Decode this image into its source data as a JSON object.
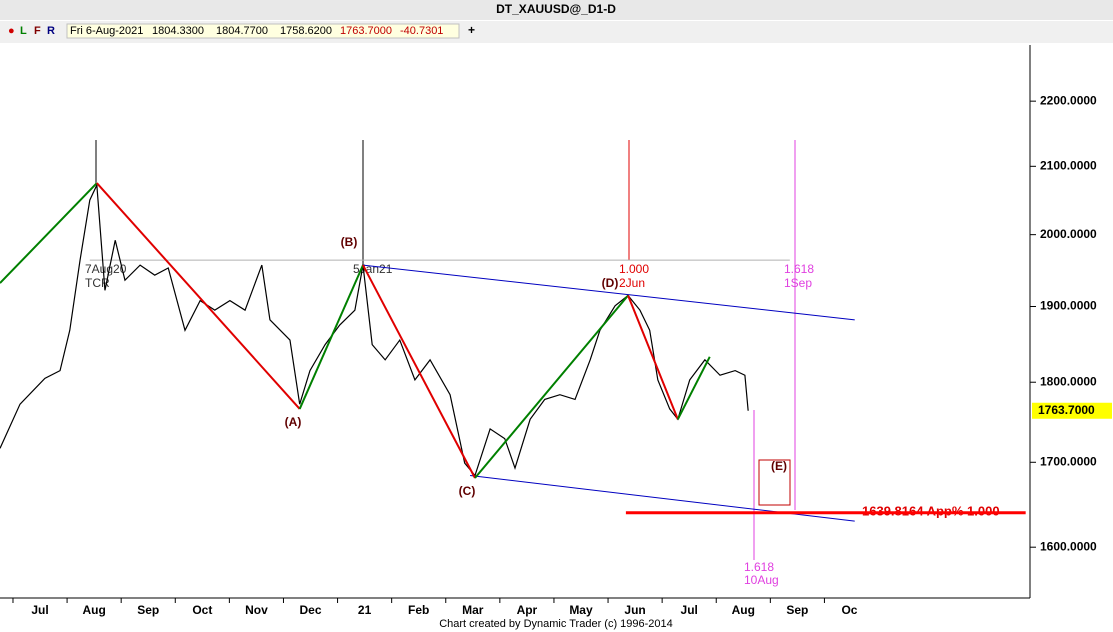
{
  "chart_data": {
    "type": "line",
    "title": "DT_XAUUSD@_D1-D",
    "toolbar": {
      "buttons": [
        "●",
        "L",
        "F",
        "R"
      ],
      "date": "Fri 6-Aug-2021",
      "open": "1804.3300",
      "high": "1804.7700",
      "low": "1758.6200",
      "close": "1763.7000",
      "change": "-40.7301",
      "add": "+"
    },
    "footer": "Chart created by Dynamic Trader  (c)  1996-2014",
    "log_scale": true,
    "xlim": [
      -0.24,
      18.8
    ],
    "xticks": [
      {
        "value": 0,
        "label": "Jul"
      },
      {
        "value": 1,
        "label": "Aug"
      },
      {
        "value": 2,
        "label": "Sep"
      },
      {
        "value": 3,
        "label": "Oct"
      },
      {
        "value": 4,
        "label": "Nov"
      },
      {
        "value": 5,
        "label": "Dec"
      },
      {
        "value": 6,
        "label": "21"
      },
      {
        "value": 7,
        "label": "Feb"
      },
      {
        "value": 8,
        "label": "Mar"
      },
      {
        "value": 9,
        "label": "Apr"
      },
      {
        "value": 10,
        "label": "May"
      },
      {
        "value": 11,
        "label": "Jun"
      },
      {
        "value": 12,
        "label": "Jul"
      },
      {
        "value": 13,
        "label": "Aug"
      },
      {
        "value": 14,
        "label": "Sep"
      },
      {
        "value": 15,
        "label": "Oct"
      }
    ],
    "ylim": [
      1543,
      2290
    ],
    "yticks": [
      {
        "value": 1600,
        "label": "1600.0000"
      },
      {
        "value": 1700,
        "label": "1700.0000"
      },
      {
        "value": 1800,
        "label": "1800.0000"
      },
      {
        "value": 1900,
        "label": "1900.0000"
      },
      {
        "value": 2000,
        "label": "2000.0000"
      },
      {
        "value": 2100,
        "label": "2100.0000"
      },
      {
        "value": 2200,
        "label": "2200.0000"
      }
    ],
    "series": [
      {
        "color": "#000000",
        "x": [
          -0.24,
          0.13,
          0.59,
          0.87,
          1.05,
          1.24,
          1.42,
          1.55,
          1.7,
          1.89,
          2.07,
          2.35,
          2.62,
          2.87,
          3.18,
          3.46,
          3.73,
          4.01,
          4.29,
          4.6,
          4.75,
          5.12,
          5.3,
          5.49,
          5.77,
          6.04,
          6.32,
          6.47,
          6.64,
          6.88,
          7.15,
          7.43,
          7.71,
          8.08,
          8.35,
          8.54,
          8.82,
          9.09,
          9.28,
          9.56,
          9.83,
          10.11,
          10.39,
          10.67,
          10.85,
          11.13,
          11.37,
          11.59,
          11.77,
          11.92,
          12.14,
          12.29,
          12.51,
          12.79,
          13.07,
          13.35,
          13.53,
          13.59
        ],
        "values": [
          1717,
          1772,
          1805,
          1815,
          1868,
          1964,
          2050,
          2072,
          1922,
          1992,
          1936,
          1957,
          1943,
          1953,
          1868,
          1908,
          1895,
          1908,
          1895,
          1957,
          1882,
          1855,
          1772,
          1815,
          1849,
          1875,
          1895,
          1957,
          1849,
          1829,
          1855,
          1803,
          1829,
          1784,
          1699,
          1684,
          1741,
          1729,
          1693,
          1753,
          1778,
          1784,
          1778,
          1829,
          1868,
          1901,
          1915,
          1895,
          1868,
          1803,
          1766,
          1753,
          1803,
          1829,
          1809,
          1815,
          1809,
          1763.7
        ]
      }
    ],
    "last_price": {
      "value": 1763.7,
      "label": "1763.7000"
    },
    "wave_colors": {
      "up": "#008000",
      "down": "#e00000"
    },
    "wave_pivots": {
      "x": [
        -0.24,
        1.55,
        5.3,
        6.47,
        8.54,
        11.37,
        12.29,
        12.88
      ],
      "values": [
        1932,
        2075,
        1766,
        1957,
        1681,
        1915,
        1753,
        1833
      ]
    },
    "lines": [
      {
        "x": [
          6.47,
          15.56
        ],
        "values": [
          1957,
          1882
        ],
        "color": "#0000c0"
      },
      {
        "x": [
          8.45,
          15.56
        ],
        "values": [
          1684,
          1630
        ],
        "color": "#0000c0"
      },
      {
        "x": [
          1.42,
          14.36
        ],
        "values": [
          1964,
          1964
        ],
        "color": "#b0b0b0"
      },
      {
        "x": [
          11.33,
          18.72
        ],
        "values": [
          1639.8164,
          1639.8164
        ],
        "color": "#ff0000"
      }
    ],
    "annotations": [
      "(A)",
      "(B)",
      "(C)",
      "(D)",
      "(E)",
      "7Aug20",
      "TCR",
      "5Jan21",
      "1.000",
      "2Jun",
      "1.618",
      "1Sep",
      "1.618",
      "10Aug",
      "1639.8164 App% 1.000"
    ]
  }
}
